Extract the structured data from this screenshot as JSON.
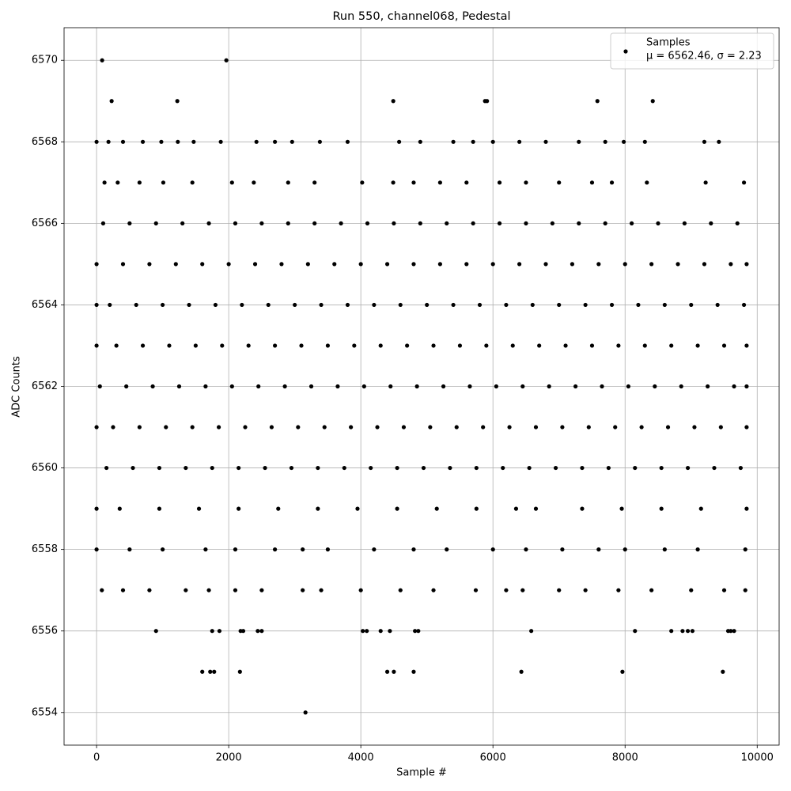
{
  "chart_data": {
    "type": "scatter",
    "title": "Run 550, channel068, Pedestal",
    "xlabel": "Sample #",
    "ylabel": "ADC Counts",
    "legend_note": "μ = 6562.46, σ = 2.23",
    "legend": "upper right",
    "grid": true,
    "xlim": [
      -492,
      10332
    ],
    "ylim": [
      6553.2,
      6570.8
    ],
    "xticks": [
      0,
      2000,
      4000,
      6000,
      8000,
      10000
    ],
    "yticks": [
      6554,
      6556,
      6558,
      6560,
      6562,
      6564,
      6566,
      6568,
      6570
    ],
    "x": [
      84,
      1964,
      228,
      1222,
      4491,
      5880,
      5910,
      7581,
      8419,
      0,
      180,
      400,
      700,
      980,
      1230,
      1470,
      1880,
      2420,
      2700,
      2960,
      3380,
      3800,
      4580,
      4900,
      5400,
      5700,
      6000,
      6400,
      6800,
      7300,
      7700,
      7980,
      8300,
      9200,
      9420,
      120,
      320,
      650,
      1010,
      1450,
      2050,
      2380,
      2900,
      3300,
      4020,
      4490,
      4800,
      5200,
      5600,
      6100,
      6500,
      7000,
      7500,
      7800,
      8330,
      9220,
      9800,
      100,
      500,
      900,
      1300,
      1700,
      2100,
      2500,
      2900,
      3300,
      3700,
      4100,
      4500,
      4900,
      5300,
      5700,
      6100,
      6500,
      6900,
      7300,
      7700,
      8100,
      8500,
      8900,
      9300,
      9700,
      0,
      400,
      800,
      1200,
      1600,
      2000,
      2400,
      2800,
      3200,
      3600,
      4000,
      4400,
      4800,
      5200,
      5600,
      6000,
      6400,
      6800,
      7200,
      7600,
      8000,
      8400,
      8800,
      9200,
      9600,
      9840,
      0,
      200,
      600,
      1000,
      1400,
      1800,
      2200,
      2600,
      3000,
      3400,
      3800,
      4200,
      4600,
      5000,
      5400,
      5800,
      6200,
      6600,
      7000,
      7400,
      7800,
      8200,
      8600,
      9000,
      9400,
      9800,
      0,
      300,
      700,
      1100,
      1500,
      1900,
      2300,
      2700,
      3100,
      3500,
      3900,
      4300,
      4700,
      5100,
      5500,
      5900,
      6300,
      6700,
      7100,
      7500,
      7900,
      8300,
      8700,
      9100,
      9500,
      9840,
      50,
      450,
      850,
      1250,
      1650,
      2050,
      2450,
      2850,
      3250,
      3650,
      4050,
      4450,
      4850,
      5250,
      5650,
      6050,
      6450,
      6850,
      7250,
      7650,
      8050,
      8450,
      8850,
      9250,
      9650,
      9840,
      0,
      250,
      650,
      1050,
      1450,
      1850,
      2250,
      2650,
      3050,
      3450,
      3850,
      4250,
      4650,
      5050,
      5450,
      5850,
      6250,
      6650,
      7050,
      7450,
      7850,
      8250,
      8650,
      9050,
      9450,
      9840,
      150,
      550,
      950,
      1350,
      1750,
      2150,
      2550,
      2950,
      3350,
      3750,
      4150,
      4550,
      4950,
      5350,
      5750,
      6150,
      6550,
      6950,
      7350,
      7750,
      8150,
      8550,
      8950,
      9350,
      9750,
      0,
      350,
      950,
      1550,
      2150,
      2750,
      3350,
      3950,
      4550,
      5150,
      5750,
      6350,
      6650,
      7350,
      7950,
      8550,
      9150,
      9840,
      0,
      500,
      1000,
      1650,
      2100,
      2700,
      3120,
      3500,
      4200,
      4800,
      5300,
      6000,
      6500,
      7050,
      7600,
      8000,
      8600,
      9100,
      9820,
      80,
      400,
      800,
      1350,
      1700,
      2100,
      2500,
      3120,
      3400,
      4000,
      4600,
      5100,
      5740,
      6200,
      6450,
      7000,
      7400,
      7900,
      8400,
      9000,
      9500,
      9820,
      900,
      1750,
      1860,
      2180,
      2220,
      2440,
      2500,
      4030,
      4090,
      4300,
      4440,
      4820,
      4870,
      6580,
      8150,
      8700,
      8870,
      8950,
      9020,
      9560,
      9600,
      9650,
      1600,
      1720,
      1780,
      2170,
      4400,
      4500,
      4800,
      6430,
      7960,
      9480,
      3162
    ],
    "series": [
      {
        "name": "Samples",
        "color": "#000000",
        "values": [
          6570,
          6570,
          6569,
          6569,
          6569,
          6569,
          6569,
          6569,
          6569,
          6568,
          6568,
          6568,
          6568,
          6568,
          6568,
          6568,
          6568,
          6568,
          6568,
          6568,
          6568,
          6568,
          6568,
          6568,
          6568,
          6568,
          6568,
          6568,
          6568,
          6568,
          6568,
          6568,
          6568,
          6568,
          6568,
          6567,
          6567,
          6567,
          6567,
          6567,
          6567,
          6567,
          6567,
          6567,
          6567,
          6567,
          6567,
          6567,
          6567,
          6567,
          6567,
          6567,
          6567,
          6567,
          6567,
          6567,
          6567,
          6566,
          6566,
          6566,
          6566,
          6566,
          6566,
          6566,
          6566,
          6566,
          6566,
          6566,
          6566,
          6566,
          6566,
          6566,
          6566,
          6566,
          6566,
          6566,
          6566,
          6566,
          6566,
          6566,
          6566,
          6566,
          6565,
          6565,
          6565,
          6565,
          6565,
          6565,
          6565,
          6565,
          6565,
          6565,
          6565,
          6565,
          6565,
          6565,
          6565,
          6565,
          6565,
          6565,
          6565,
          6565,
          6565,
          6565,
          6565,
          6565,
          6565,
          6565,
          6564,
          6564,
          6564,
          6564,
          6564,
          6564,
          6564,
          6564,
          6564,
          6564,
          6564,
          6564,
          6564,
          6564,
          6564,
          6564,
          6564,
          6564,
          6564,
          6564,
          6564,
          6564,
          6564,
          6564,
          6564,
          6564,
          6563,
          6563,
          6563,
          6563,
          6563,
          6563,
          6563,
          6563,
          6563,
          6563,
          6563,
          6563,
          6563,
          6563,
          6563,
          6563,
          6563,
          6563,
          6563,
          6563,
          6563,
          6563,
          6563,
          6563,
          6563,
          6563,
          6562,
          6562,
          6562,
          6562,
          6562,
          6562,
          6562,
          6562,
          6562,
          6562,
          6562,
          6562,
          6562,
          6562,
          6562,
          6562,
          6562,
          6562,
          6562,
          6562,
          6562,
          6562,
          6562,
          6562,
          6562,
          6562,
          6561,
          6561,
          6561,
          6561,
          6561,
          6561,
          6561,
          6561,
          6561,
          6561,
          6561,
          6561,
          6561,
          6561,
          6561,
          6561,
          6561,
          6561,
          6561,
          6561,
          6561,
          6561,
          6561,
          6561,
          6561,
          6561,
          6560,
          6560,
          6560,
          6560,
          6560,
          6560,
          6560,
          6560,
          6560,
          6560,
          6560,
          6560,
          6560,
          6560,
          6560,
          6560,
          6560,
          6560,
          6560,
          6560,
          6560,
          6560,
          6560,
          6560,
          6560,
          6559,
          6559,
          6559,
          6559,
          6559,
          6559,
          6559,
          6559,
          6559,
          6559,
          6559,
          6559,
          6559,
          6559,
          6559,
          6559,
          6559,
          6559,
          6558,
          6558,
          6558,
          6558,
          6558,
          6558,
          6558,
          6558,
          6558,
          6558,
          6558,
          6558,
          6558,
          6558,
          6558,
          6558,
          6558,
          6558,
          6558,
          6557,
          6557,
          6557,
          6557,
          6557,
          6557,
          6557,
          6557,
          6557,
          6557,
          6557,
          6557,
          6557,
          6557,
          6557,
          6557,
          6557,
          6557,
          6557,
          6557,
          6557,
          6557,
          6556,
          6556,
          6556,
          6556,
          6556,
          6556,
          6556,
          6556,
          6556,
          6556,
          6556,
          6556,
          6556,
          6556,
          6556,
          6556,
          6556,
          6556,
          6556,
          6556,
          6556,
          6556,
          6555,
          6555,
          6555,
          6555,
          6555,
          6555,
          6555,
          6555,
          6555,
          6555,
          6554
        ]
      }
    ]
  }
}
